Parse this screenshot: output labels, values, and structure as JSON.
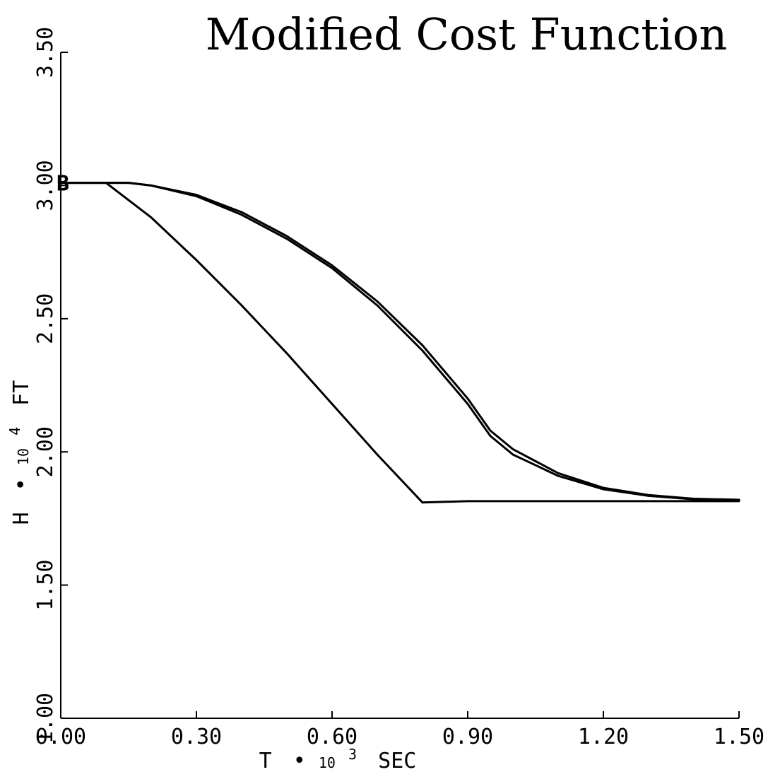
{
  "chart_data": {
    "type": "line",
    "title": "Modified  Cost Function",
    "xlabel": {
      "prefix": "T",
      "multiplier": "•",
      "base": "10",
      "exponent": "3",
      "unit": "SEC"
    },
    "ylabel": {
      "prefix": "H",
      "multiplier": "•",
      "base": "10",
      "exponent": "4",
      "unit": "FT"
    },
    "xlim": [
      0.0,
      1.5
    ],
    "ylim": [
      1.0,
      3.5
    ],
    "x_ticks": [
      "0.00",
      "0.30",
      "0.60",
      "0.90",
      "1.20",
      "1.50"
    ],
    "y_ticks": [
      "1.00",
      "1.50",
      "2.00",
      "2.50",
      "3.00",
      "3.50"
    ],
    "grid": false,
    "legend": "none",
    "start_marker": {
      "label": "B",
      "x": 0.0,
      "y": 3.01
    },
    "series": [
      {
        "x": [
          0.0,
          0.1,
          0.15,
          0.2,
          0.3,
          0.4,
          0.5,
          0.6,
          0.7,
          0.8,
          0.9,
          0.95,
          1.0,
          1.1,
          1.2,
          1.3,
          1.4,
          1.5
        ],
        "y": [
          3.01,
          3.01,
          3.01,
          3.0,
          2.96,
          2.89,
          2.8,
          2.69,
          2.55,
          2.38,
          2.18,
          2.06,
          1.99,
          1.91,
          1.86,
          1.835,
          1.822,
          1.82
        ]
      },
      {
        "x": [
          0.0,
          0.1,
          0.15,
          0.2,
          0.3,
          0.4,
          0.5,
          0.6,
          0.7,
          0.8,
          0.9,
          0.95,
          1.0,
          1.1,
          1.2,
          1.3,
          1.4,
          1.5
        ],
        "y": [
          3.01,
          3.01,
          3.01,
          3.0,
          2.965,
          2.9,
          2.81,
          2.7,
          2.565,
          2.4,
          2.2,
          2.08,
          2.01,
          1.92,
          1.865,
          1.838,
          1.824,
          1.82
        ]
      },
      {
        "x": [
          0.0,
          0.1,
          0.2,
          0.3,
          0.4,
          0.5,
          0.6,
          0.7,
          0.8,
          0.9,
          1.0,
          1.1,
          1.2,
          1.3,
          1.4,
          1.5
        ],
        "y": [
          3.01,
          3.01,
          2.88,
          2.72,
          2.55,
          2.37,
          2.18,
          1.99,
          1.81,
          1.815,
          1.815,
          1.815,
          1.815,
          1.815,
          1.815,
          1.815
        ]
      }
    ]
  }
}
